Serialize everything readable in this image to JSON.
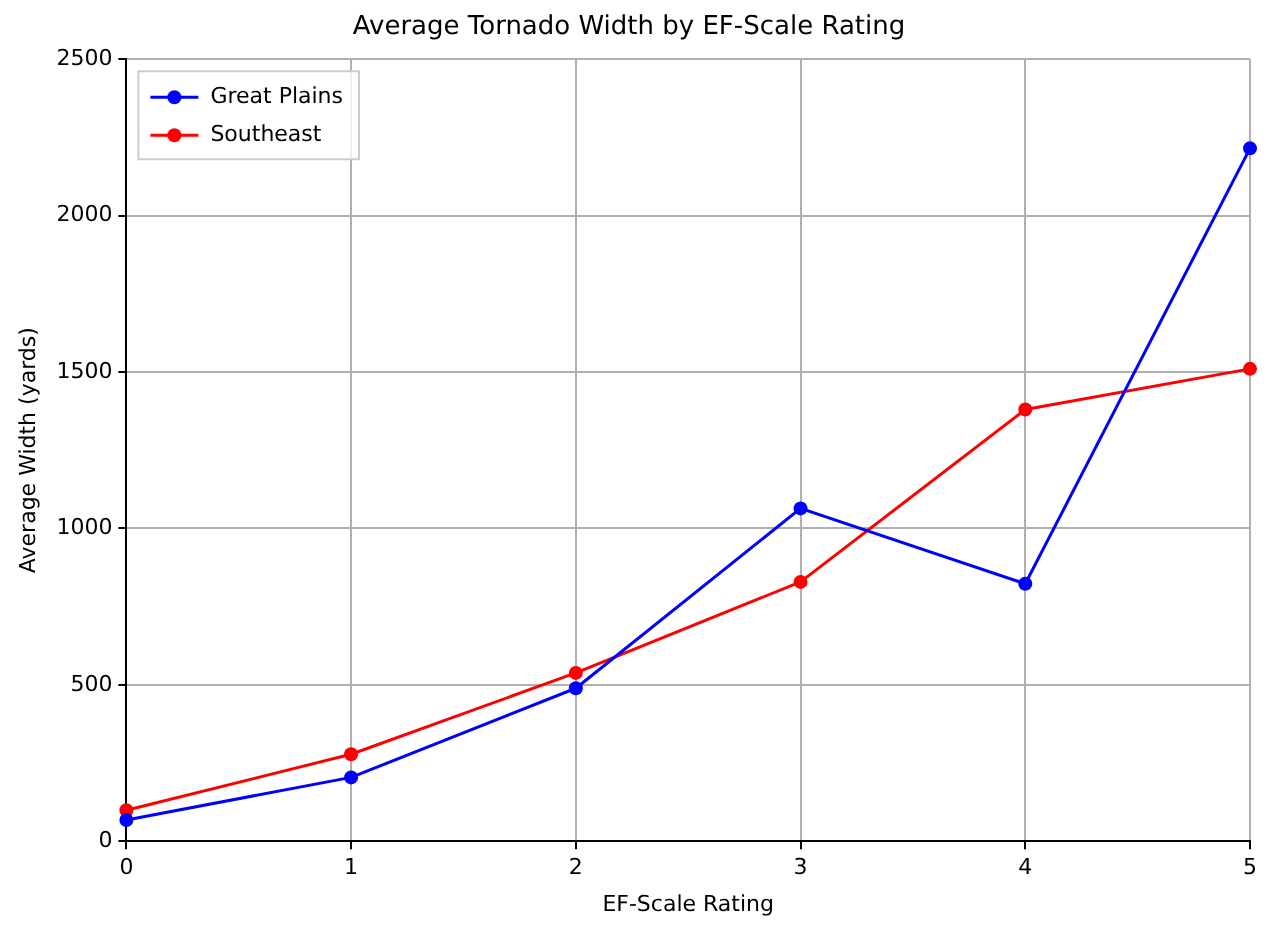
{
  "chart_data": {
    "type": "line",
    "title": "Average Tornado Width by EF-Scale Rating",
    "xlabel": "EF-Scale Rating",
    "ylabel": "Average Width (yards)",
    "x": [
      0,
      1,
      2,
      3,
      4,
      5
    ],
    "series": [
      {
        "name": "Great Plains",
        "color": "#0000ff",
        "values": [
          68,
          204,
          489,
          1064,
          823,
          2215
        ]
      },
      {
        "name": "Southeast",
        "color": "#ff0000",
        "values": [
          99,
          278,
          538,
          829,
          1380,
          1510
        ]
      }
    ],
    "xlim": [
      0,
      5
    ],
    "xticks": [
      0,
      1,
      2,
      3,
      4,
      5
    ],
    "ylim": [
      0,
      2500
    ],
    "yticks": [
      0,
      500,
      1000,
      1500,
      2000,
      2500
    ],
    "grid": true,
    "legend": "top left",
    "marker": "circle",
    "line_style": "solid"
  }
}
